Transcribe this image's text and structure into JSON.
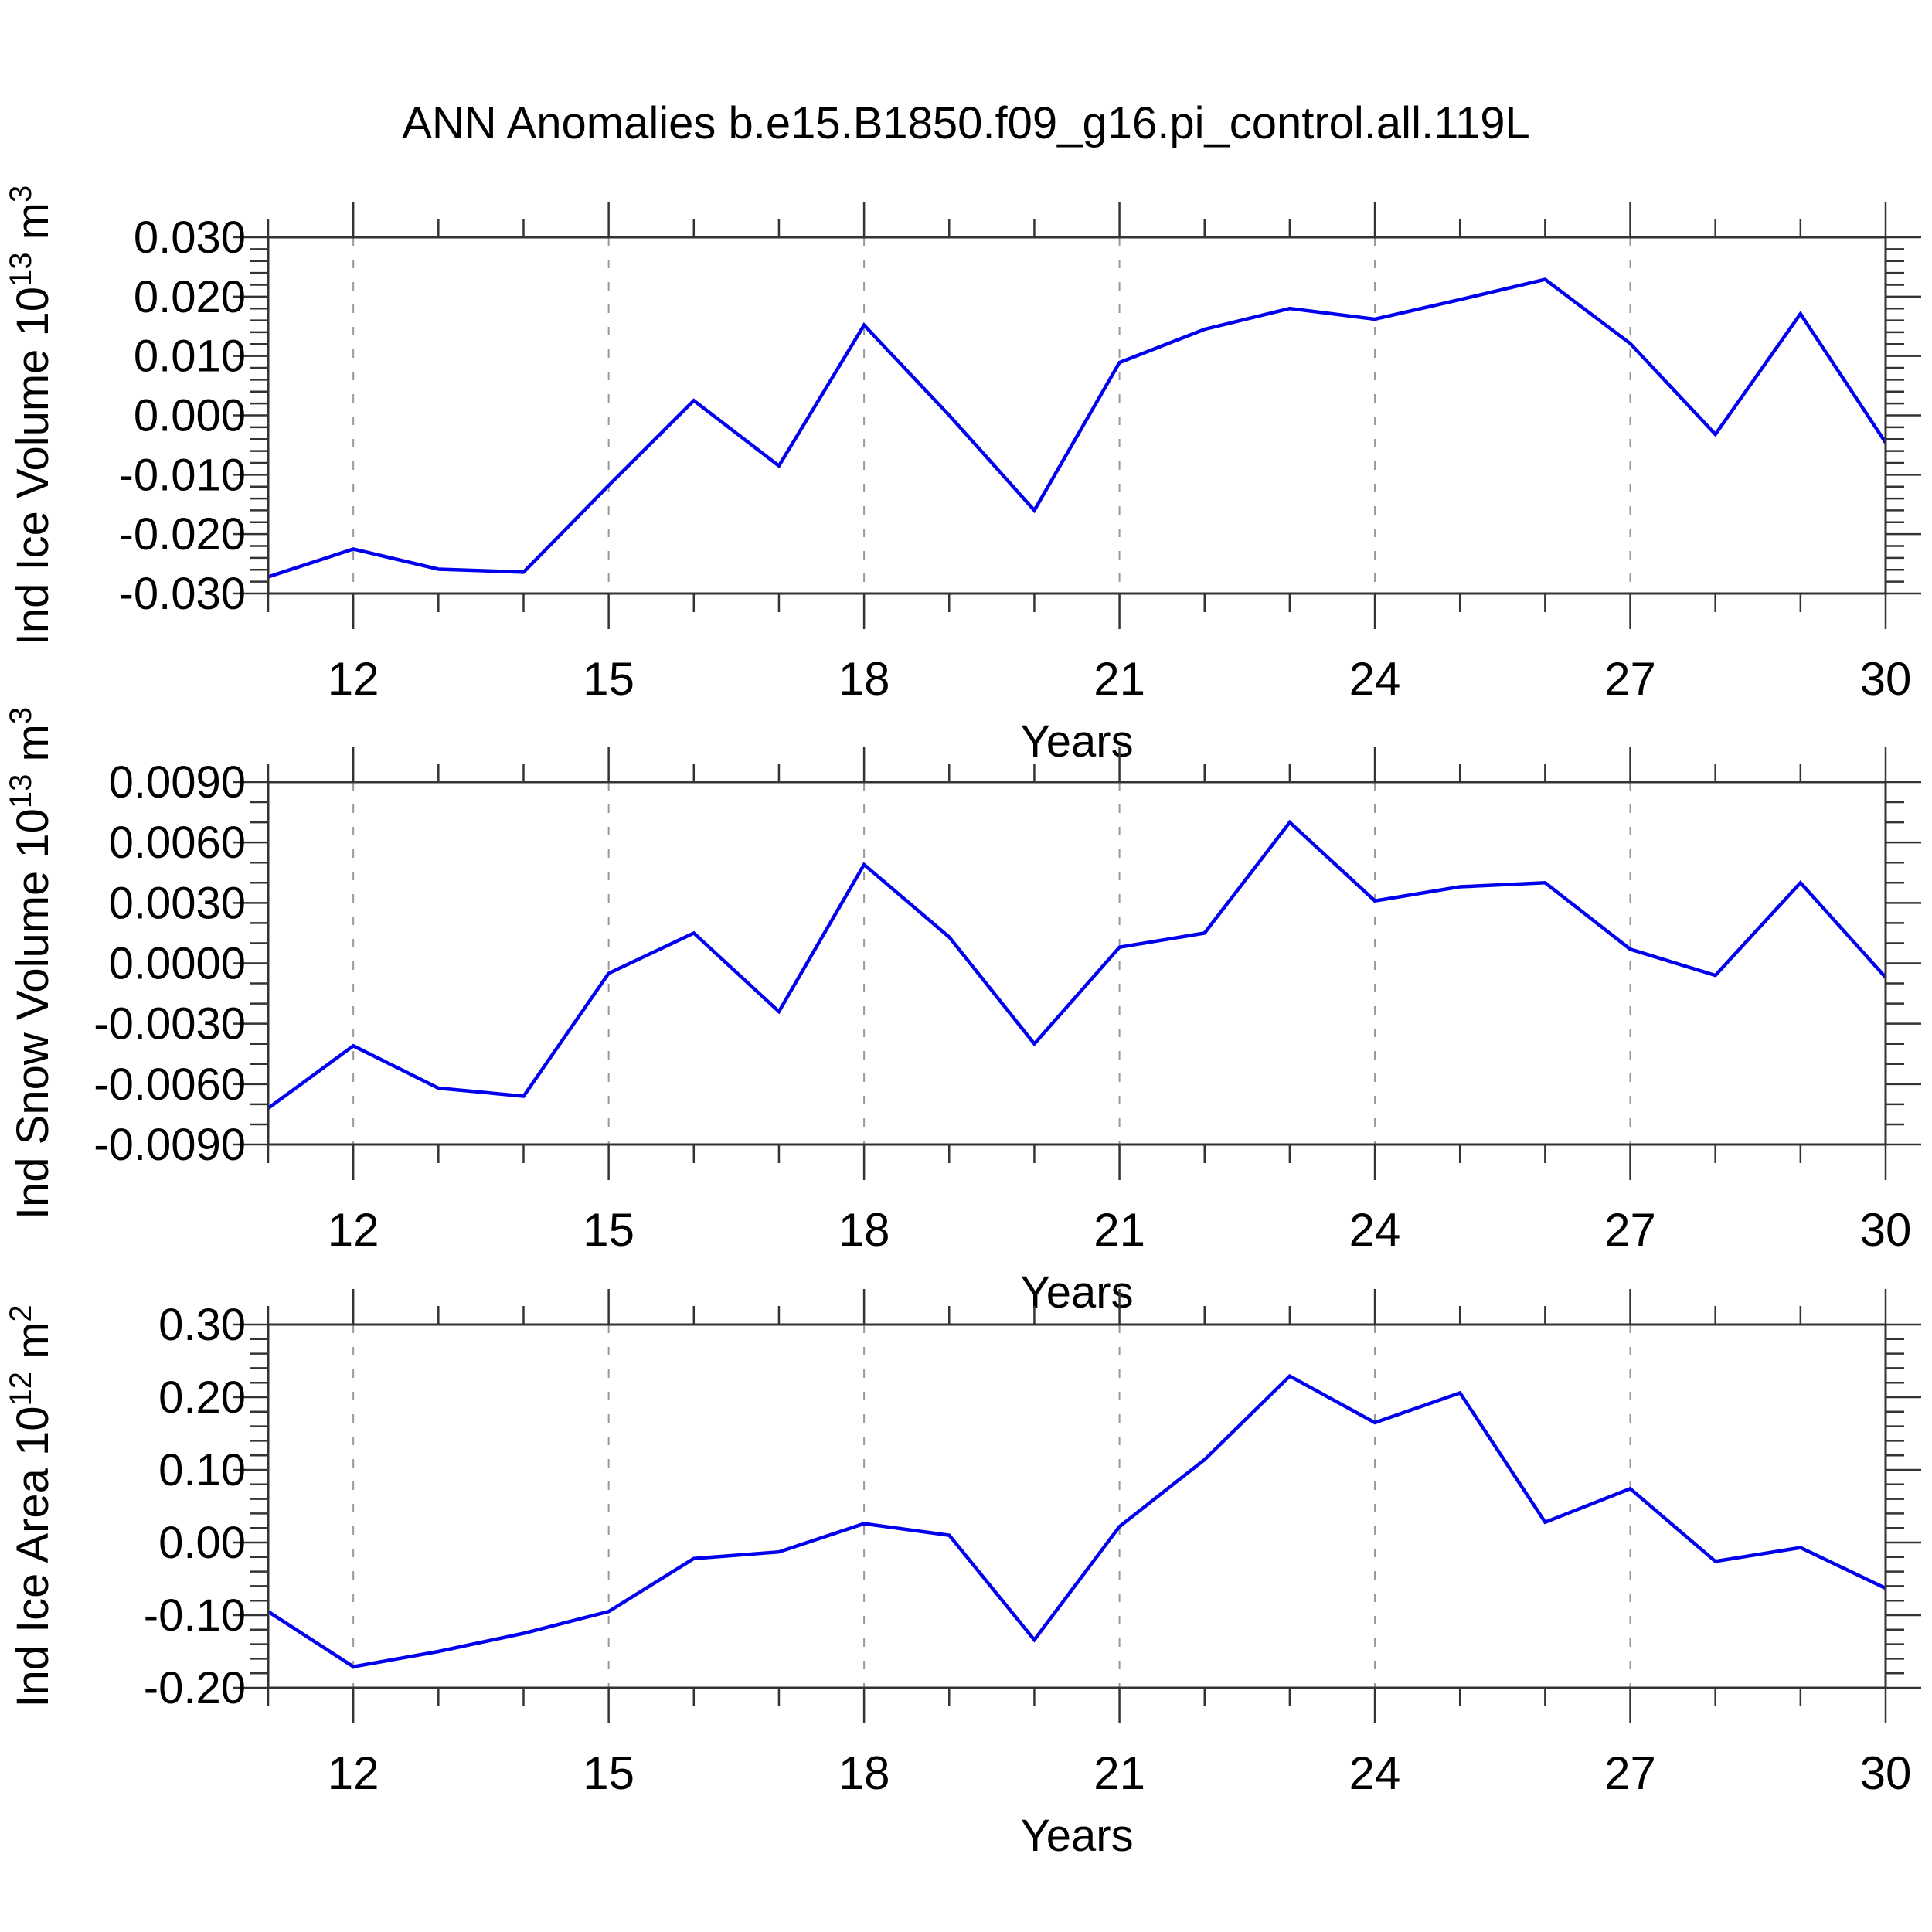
{
  "title": "ANN Anomalies b.e15.B1850.f09_g16.pi_control.all.119L",
  "colors": {
    "line": "#0000ee",
    "axis": "#333333",
    "grid": "#999999",
    "text": "#000000"
  },
  "chart_data": [
    {
      "type": "line",
      "panel": 1,
      "xlabel": "Years",
      "ylabel": "Ind Ice Volume 10^13 m^3",
      "ylabel_parts": [
        {
          "t": "Ind Ice Volume 10"
        },
        {
          "t": "13",
          "sup": true
        },
        {
          "t": " m"
        },
        {
          "t": "3",
          "sup": true
        }
      ],
      "x": [
        11,
        12,
        13,
        14,
        15,
        16,
        17,
        18,
        19,
        20,
        21,
        22,
        23,
        24,
        25,
        26,
        27,
        28,
        29,
        30
      ],
      "values": [
        -0.0272,
        -0.0225,
        -0.0259,
        -0.0264,
        -0.0118,
        0.0025,
        -0.0085,
        0.0152,
        0.0,
        -0.016,
        0.0089,
        0.0145,
        0.018,
        0.0162,
        0.0195,
        0.0229,
        0.0121,
        -0.0032,
        0.0171,
        -0.0046
      ],
      "xlim": [
        11,
        30
      ],
      "ylim": [
        -0.03,
        0.03
      ],
      "ytick_values": [
        0.03,
        0.02,
        0.01,
        0.0,
        -0.01,
        -0.02,
        -0.03
      ],
      "ytick_labels": [
        "0.030",
        "0.020",
        "0.010",
        "0.000",
        "-0.010",
        "-0.020",
        "-0.030"
      ],
      "y_minor_step": 0.002,
      "xticks_major": [
        12,
        15,
        18,
        21,
        24,
        27,
        30
      ],
      "xtick_labels": [
        "12",
        "15",
        "18",
        "21",
        "24",
        "27",
        "30"
      ],
      "x_minor_step": 1,
      "gridline_years": [
        12,
        15,
        18,
        21,
        24,
        27
      ],
      "grid": "vertical-dashed",
      "legend": "none"
    },
    {
      "type": "line",
      "panel": 2,
      "xlabel": "Years",
      "ylabel": "Ind Snow Volume 10^13 m^3",
      "ylabel_parts": [
        {
          "t": "Ind Snow Volume 10"
        },
        {
          "t": "13",
          "sup": true
        },
        {
          "t": " m"
        },
        {
          "t": "3",
          "sup": true
        }
      ],
      "x": [
        11,
        12,
        13,
        14,
        15,
        16,
        17,
        18,
        19,
        20,
        21,
        22,
        23,
        24,
        25,
        26,
        27,
        28,
        29,
        30
      ],
      "values": [
        -0.0072,
        -0.0041,
        -0.0062,
        -0.0066,
        -0.0005,
        0.0015,
        -0.0024,
        0.0049,
        0.0013,
        -0.004,
        0.0008,
        0.0015,
        0.007,
        0.0031,
        0.0038,
        0.004,
        0.0007,
        -0.0006,
        0.004,
        -0.0007
      ],
      "xlim": [
        11,
        30
      ],
      "ylim": [
        -0.009,
        0.009
      ],
      "ytick_values": [
        0.009,
        0.006,
        0.003,
        0.0,
        -0.003,
        -0.006,
        -0.009
      ],
      "ytick_labels": [
        "0.0090",
        "0.0060",
        "0.0030",
        "0.0000",
        "-0.0030",
        "-0.0060",
        "-0.0090"
      ],
      "y_minor_step": 0.001,
      "xticks_major": [
        12,
        15,
        18,
        21,
        24,
        27,
        30
      ],
      "xtick_labels": [
        "12",
        "15",
        "18",
        "21",
        "24",
        "27",
        "30"
      ],
      "x_minor_step": 1,
      "gridline_years": [
        12,
        15,
        18,
        21,
        24,
        27
      ],
      "grid": "vertical-dashed",
      "legend": "none"
    },
    {
      "type": "line",
      "panel": 3,
      "xlabel": "Years",
      "ylabel": "Ind Ice Area 10^12 m^2",
      "ylabel_parts": [
        {
          "t": "Ind Ice Area 10"
        },
        {
          "t": "12",
          "sup": true
        },
        {
          "t": " m"
        },
        {
          "t": "2",
          "sup": true
        }
      ],
      "x": [
        11,
        12,
        13,
        14,
        15,
        16,
        17,
        18,
        19,
        20,
        21,
        22,
        23,
        24,
        25,
        26,
        27,
        28,
        29,
        30
      ],
      "values": [
        -0.095,
        -0.171,
        -0.15,
        -0.125,
        -0.095,
        -0.022,
        -0.013,
        0.026,
        0.01,
        -0.134,
        0.022,
        0.114,
        0.229,
        0.165,
        0.206,
        0.028,
        0.074,
        -0.026,
        -0.007,
        -0.063
      ],
      "xlim": [
        11,
        30
      ],
      "ylim": [
        -0.2,
        0.3
      ],
      "ytick_values": [
        0.3,
        0.2,
        0.1,
        0.0,
        -0.1,
        -0.2
      ],
      "ytick_labels": [
        "0.30",
        "0.20",
        "0.10",
        "0.00",
        "-0.10",
        "-0.20"
      ],
      "y_minor_step": 0.02,
      "xticks_major": [
        12,
        15,
        18,
        21,
        24,
        27,
        30
      ],
      "xtick_labels": [
        "12",
        "15",
        "18",
        "21",
        "24",
        "27",
        "30"
      ],
      "x_minor_step": 1,
      "gridline_years": [
        12,
        15,
        18,
        21,
        24,
        27
      ],
      "grid": "vertical-dashed",
      "legend": "none"
    }
  ]
}
